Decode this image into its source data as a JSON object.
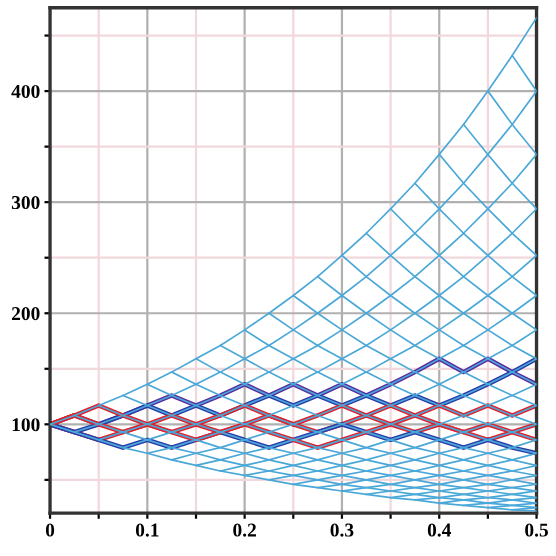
{
  "chart_data": {
    "type": "line",
    "x": [
      0,
      0.025,
      0.05,
      0.075,
      0.1,
      0.125,
      0.15,
      0.175,
      0.2,
      0.225,
      0.25,
      0.275,
      0.3,
      0.325,
      0.35,
      0.375,
      0.4,
      0.425,
      0.45,
      0.475,
      0.5
    ],
    "series": [
      {
        "color": "#4aa8d8",
        "values": [
          100,
          108,
          117,
          126,
          136,
          147,
          159,
          171,
          185,
          200,
          216,
          233,
          252,
          272,
          294,
          317,
          343,
          370,
          400,
          432,
          466
        ]
      },
      {
        "color": "#4aa8d8",
        "values": [
          null,
          93,
          100,
          108,
          117,
          126,
          136,
          147,
          159,
          171,
          185,
          200,
          216,
          233,
          252,
          272,
          294,
          317,
          343,
          370,
          400
        ]
      },
      {
        "color": "#4aa8d8",
        "values": [
          null,
          null,
          86,
          93,
          100,
          108,
          117,
          126,
          136,
          147,
          159,
          171,
          185,
          200,
          216,
          233,
          252,
          272,
          294,
          317,
          343
        ]
      },
      {
        "color": "#4aa8d8",
        "values": [
          null,
          null,
          null,
          79,
          86,
          93,
          100,
          108,
          117,
          126,
          136,
          147,
          159,
          171,
          185,
          200,
          216,
          233,
          252,
          272,
          294
        ]
      },
      {
        "color": "#4aa8d8",
        "values": [
          null,
          null,
          null,
          null,
          74,
          79,
          86,
          93,
          100,
          108,
          117,
          126,
          136,
          147,
          159,
          171,
          185,
          200,
          216,
          233,
          252
        ]
      },
      {
        "color": "#4aa8d8",
        "values": [
          null,
          null,
          null,
          null,
          null,
          68,
          74,
          79,
          86,
          93,
          100,
          108,
          117,
          126,
          136,
          147,
          159,
          171,
          185,
          200,
          216
        ]
      },
      {
        "color": "#4aa8d8",
        "values": [
          null,
          null,
          null,
          null,
          null,
          null,
          63,
          68,
          74,
          79,
          86,
          93,
          100,
          108,
          117,
          126,
          136,
          147,
          159,
          171,
          185
        ]
      },
      {
        "color": "#4aa8d8",
        "values": [
          null,
          null,
          null,
          null,
          null,
          null,
          null,
          58,
          63,
          68,
          74,
          79,
          86,
          93,
          100,
          108,
          117,
          126,
          136,
          147,
          159
        ]
      },
      {
        "color": "#4aa8d8",
        "values": [
          null,
          null,
          null,
          null,
          null,
          null,
          null,
          null,
          54,
          58,
          63,
          68,
          74,
          79,
          86,
          93,
          100,
          108,
          117,
          126,
          136
        ]
      },
      {
        "color": "#4aa8d8",
        "values": [
          null,
          null,
          null,
          null,
          null,
          null,
          null,
          null,
          null,
          50,
          54,
          58,
          63,
          68,
          74,
          79,
          86,
          93,
          100,
          108,
          117
        ]
      },
      {
        "color": "#4aa8d8",
        "values": [
          null,
          null,
          null,
          null,
          null,
          null,
          null,
          null,
          null,
          null,
          46,
          50,
          54,
          58,
          63,
          68,
          74,
          79,
          86,
          93,
          100
        ]
      },
      {
        "color": "#4aa8d8",
        "values": [
          null,
          null,
          null,
          null,
          null,
          null,
          null,
          null,
          null,
          null,
          null,
          43,
          46,
          50,
          54,
          58,
          63,
          68,
          74,
          79,
          86
        ]
      },
      {
        "color": "#4aa8d8",
        "values": [
          null,
          null,
          null,
          null,
          null,
          null,
          null,
          null,
          null,
          null,
          null,
          null,
          40,
          43,
          46,
          50,
          54,
          58,
          63,
          68,
          74
        ]
      },
      {
        "color": "#4aa8d8",
        "values": [
          null,
          null,
          null,
          null,
          null,
          null,
          null,
          null,
          null,
          null,
          null,
          null,
          null,
          37,
          40,
          43,
          46,
          50,
          54,
          58,
          63
        ]
      },
      {
        "color": "#4aa8d8",
        "values": [
          null,
          null,
          null,
          null,
          null,
          null,
          null,
          null,
          null,
          null,
          null,
          null,
          null,
          null,
          34,
          37,
          40,
          43,
          46,
          50,
          54
        ]
      },
      {
        "color": "#4aa8d8",
        "values": [
          null,
          null,
          null,
          null,
          null,
          null,
          null,
          null,
          null,
          null,
          null,
          null,
          null,
          null,
          null,
          32,
          34,
          37,
          40,
          43,
          46
        ]
      },
      {
        "color": "#4aa8d8",
        "values": [
          null,
          null,
          null,
          null,
          null,
          null,
          null,
          null,
          null,
          null,
          null,
          null,
          null,
          null,
          null,
          null,
          29,
          32,
          34,
          37,
          40
        ]
      },
      {
        "color": "#4aa8d8",
        "values": [
          null,
          null,
          null,
          null,
          null,
          null,
          null,
          null,
          null,
          null,
          null,
          null,
          null,
          null,
          null,
          null,
          null,
          27,
          29,
          32,
          34
        ]
      },
      {
        "color": "#4aa8d8",
        "values": [
          null,
          null,
          null,
          null,
          null,
          null,
          null,
          null,
          null,
          null,
          null,
          null,
          null,
          null,
          null,
          null,
          null,
          null,
          25,
          27,
          29
        ]
      },
      {
        "color": "#4aa8d8",
        "values": [
          null,
          null,
          null,
          null,
          null,
          null,
          null,
          null,
          null,
          null,
          null,
          null,
          null,
          null,
          null,
          null,
          null,
          null,
          null,
          23,
          25
        ]
      },
      {
        "color": "#4aa8d8",
        "values": [
          100,
          93,
          86,
          79,
          74,
          68,
          63,
          58,
          54,
          50,
          46,
          43,
          40,
          37,
          34,
          32,
          29,
          27,
          25,
          23,
          22
        ]
      },
      {
        "color": "#4aa8d8",
        "values": [
          null,
          108,
          100,
          93,
          86,
          79,
          74,
          68,
          63,
          58,
          54,
          50,
          46,
          43,
          40,
          37,
          34,
          32,
          29,
          27,
          25
        ]
      },
      {
        "color": "#4aa8d8",
        "values": [
          null,
          null,
          117,
          108,
          100,
          93,
          86,
          79,
          74,
          68,
          63,
          58,
          54,
          50,
          46,
          43,
          40,
          37,
          34,
          32,
          29
        ]
      },
      {
        "color": "#4aa8d8",
        "values": [
          null,
          null,
          null,
          126,
          117,
          108,
          100,
          93,
          86,
          79,
          74,
          68,
          63,
          58,
          54,
          50,
          46,
          43,
          40,
          37,
          34
        ]
      },
      {
        "color": "#4aa8d8",
        "values": [
          null,
          null,
          null,
          null,
          136,
          126,
          117,
          108,
          100,
          93,
          86,
          79,
          74,
          68,
          63,
          58,
          54,
          50,
          46,
          43,
          40
        ]
      },
      {
        "color": "#4aa8d8",
        "values": [
          null,
          null,
          null,
          null,
          null,
          147,
          136,
          126,
          117,
          108,
          100,
          93,
          86,
          79,
          74,
          68,
          63,
          58,
          54,
          50,
          46
        ]
      },
      {
        "color": "#4aa8d8",
        "values": [
          null,
          null,
          null,
          null,
          null,
          null,
          159,
          147,
          136,
          126,
          117,
          108,
          100,
          93,
          86,
          79,
          74,
          68,
          63,
          58,
          54
        ]
      },
      {
        "color": "#4aa8d8",
        "values": [
          null,
          null,
          null,
          null,
          null,
          null,
          null,
          171,
          159,
          147,
          136,
          126,
          117,
          108,
          100,
          93,
          86,
          79,
          74,
          68,
          63
        ]
      },
      {
        "color": "#4aa8d8",
        "values": [
          null,
          null,
          null,
          null,
          null,
          null,
          null,
          null,
          185,
          171,
          159,
          147,
          136,
          126,
          117,
          108,
          100,
          93,
          86,
          79,
          74
        ]
      },
      {
        "color": "#4aa8d8",
        "values": [
          null,
          null,
          null,
          null,
          null,
          null,
          null,
          null,
          null,
          200,
          185,
          171,
          159,
          147,
          136,
          126,
          117,
          108,
          100,
          93,
          86
        ]
      },
      {
        "color": "#4aa8d8",
        "values": [
          null,
          null,
          null,
          null,
          null,
          null,
          null,
          null,
          null,
          null,
          216,
          200,
          185,
          171,
          159,
          147,
          136,
          126,
          117,
          108,
          100
        ]
      },
      {
        "color": "#4aa8d8",
        "values": [
          null,
          null,
          null,
          null,
          null,
          null,
          null,
          null,
          null,
          null,
          null,
          233,
          216,
          200,
          185,
          171,
          159,
          147,
          136,
          126,
          117
        ]
      },
      {
        "color": "#4aa8d8",
        "values": [
          null,
          null,
          null,
          null,
          null,
          null,
          null,
          null,
          null,
          null,
          null,
          null,
          252,
          233,
          216,
          200,
          185,
          171,
          159,
          147,
          136
        ]
      },
      {
        "color": "#4aa8d8",
        "values": [
          null,
          null,
          null,
          null,
          null,
          null,
          null,
          null,
          null,
          null,
          null,
          null,
          null,
          272,
          252,
          233,
          216,
          200,
          185,
          171,
          159
        ]
      },
      {
        "color": "#4aa8d8",
        "values": [
          null,
          null,
          null,
          null,
          null,
          null,
          null,
          null,
          null,
          null,
          null,
          null,
          null,
          null,
          294,
          272,
          252,
          233,
          216,
          200,
          185
        ]
      },
      {
        "color": "#4aa8d8",
        "values": [
          null,
          null,
          null,
          null,
          null,
          null,
          null,
          null,
          null,
          null,
          null,
          null,
          null,
          null,
          null,
          317,
          294,
          272,
          252,
          233,
          216
        ]
      },
      {
        "color": "#4aa8d8",
        "values": [
          null,
          null,
          null,
          null,
          null,
          null,
          null,
          null,
          null,
          null,
          null,
          null,
          null,
          null,
          null,
          null,
          343,
          317,
          294,
          272,
          252
        ]
      },
      {
        "color": "#4aa8d8",
        "values": [
          null,
          null,
          null,
          null,
          null,
          null,
          null,
          null,
          null,
          null,
          null,
          null,
          null,
          null,
          null,
          null,
          null,
          370,
          343,
          317,
          294
        ]
      },
      {
        "color": "#4aa8d8",
        "values": [
          null,
          null,
          null,
          null,
          null,
          null,
          null,
          null,
          null,
          null,
          null,
          null,
          null,
          null,
          null,
          null,
          null,
          null,
          400,
          370,
          343
        ]
      },
      {
        "color": "#4aa8d8",
        "values": [
          null,
          null,
          null,
          null,
          null,
          null,
          null,
          null,
          null,
          null,
          null,
          null,
          null,
          null,
          null,
          null,
          null,
          null,
          null,
          432,
          400
        ]
      },
      {
        "color": "#5a2ca0",
        "values": [
          100,
          108,
          100,
          108,
          117,
          126,
          117,
          126,
          136,
          126,
          136,
          126,
          136,
          126,
          136,
          147,
          159,
          147,
          159,
          147,
          136
        ]
      },
      {
        "color": "#2a3aa8",
        "values": [
          100,
          93,
          100,
          108,
          117,
          108,
          117,
          108,
          117,
          126,
          117,
          126,
          117,
          126,
          117,
          126,
          117,
          126,
          136,
          147,
          159
        ]
      },
      {
        "color": "#e0202a",
        "values": [
          100,
          108,
          100,
          93,
          100,
          108,
          100,
          108,
          117,
          108,
          100,
          108,
          117,
          108,
          117,
          108,
          117,
          108,
          117,
          108,
          117
        ]
      },
      {
        "color": "#e0202a",
        "values": [
          100,
          93,
          86,
          93,
          100,
          93,
          100,
          93,
          100,
          108,
          100,
          93,
          100,
          108,
          100,
          93,
          100,
          93,
          86,
          93,
          100
        ]
      },
      {
        "color": "#2a3aa8",
        "values": [
          100,
          93,
          86,
          79,
          86,
          79,
          86,
          93,
          86,
          79,
          86,
          93,
          100,
          93,
          86,
          93,
          86,
          79,
          86,
          79,
          74
        ]
      },
      {
        "color": "#e0202a",
        "values": [
          100,
          108,
          117,
          108,
          100,
          93,
          86,
          93,
          100,
          93,
          86,
          79,
          86,
          93,
          100,
          108,
          100,
          93,
          100,
          93,
          86
        ]
      }
    ],
    "xlim": [
      0,
      0.5
    ],
    "ylim": [
      20,
      475
    ],
    "xticks": [
      0,
      {
        "value": 0.05,
        "label": null
      },
      0.1,
      {
        "value": 0.15,
        "label": null
      },
      0.2,
      {
        "value": 0.25,
        "label": null
      },
      0.3,
      {
        "value": 0.35,
        "label": null
      },
      0.4,
      {
        "value": 0.45,
        "label": null
      },
      0.5
    ],
    "yticks": [
      {
        "value": 50,
        "label": null
      },
      100,
      {
        "value": 150,
        "label": null
      },
      200,
      {
        "value": 250,
        "label": null
      },
      300,
      {
        "value": 350,
        "label": null
      },
      400,
      {
        "value": 450,
        "label": null
      }
    ],
    "grid": true
  }
}
